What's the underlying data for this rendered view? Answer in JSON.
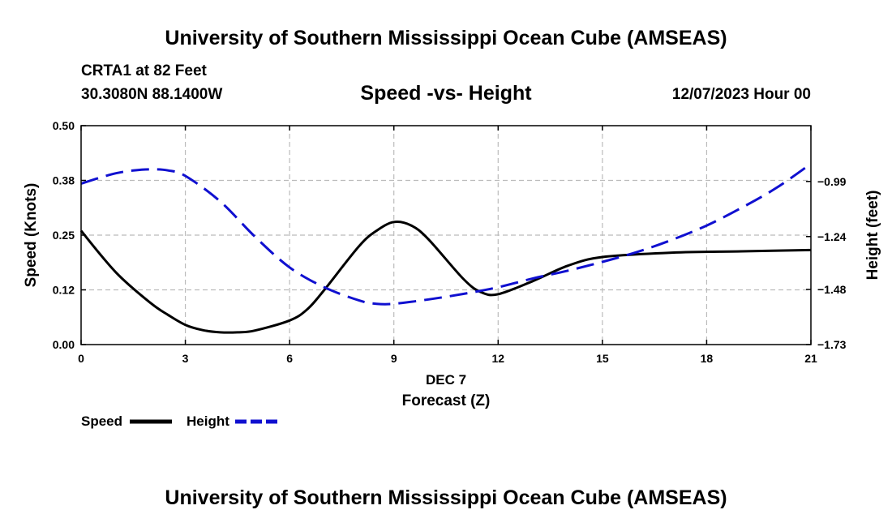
{
  "header": {
    "title": "University of Southern Mississippi Ocean Cube (AMSEAS)",
    "station": "CRTA1 at 82 Feet",
    "coords": "30.3080N  88.1400W",
    "date_label": "12/07/2023 Hour 00"
  },
  "footer": {
    "title": "University of Southern Mississippi Ocean Cube (AMSEAS)"
  },
  "colors": {
    "speed": "#000000",
    "height": "#1010d0",
    "grid": "#bbbbbb"
  },
  "chart_data": {
    "type": "line",
    "title": "Speed -vs- Height",
    "xlabel": "Forecast (Z)",
    "x_sublabel": "DEC 7",
    "ylabel": "Speed (Knots)",
    "y2label": "Height (feet)",
    "xlim": [
      0,
      21
    ],
    "ylim": [
      0,
      0.5
    ],
    "y2lim": [
      -1.73,
      -0.737
    ],
    "x_ticks": [
      0,
      3,
      6,
      9,
      12,
      15,
      18,
      21
    ],
    "y_ticks": [
      "0.00",
      "0.12",
      "0.25",
      "0.38",
      "0.50"
    ],
    "y2_ticks": [
      "-1.73",
      "-1.48",
      "-1.24",
      "-0.99"
    ],
    "grid": true,
    "series": [
      {
        "name": "Speed",
        "axis": "left",
        "style": "solid",
        "x": [
          0,
          1,
          2,
          2.5,
          3,
          3.5,
          4,
          4.5,
          5,
          6,
          6.5,
          7,
          8,
          8.5,
          9,
          9.5,
          10,
          11,
          11.5,
          12,
          13,
          14,
          15,
          17,
          19,
          21
        ],
        "values": [
          0.26,
          0.165,
          0.095,
          0.068,
          0.045,
          0.033,
          0.028,
          0.028,
          0.032,
          0.055,
          0.08,
          0.125,
          0.225,
          0.26,
          0.28,
          0.272,
          0.24,
          0.15,
          0.12,
          0.115,
          0.145,
          0.18,
          0.2,
          0.21,
          0.213,
          0.216
        ]
      },
      {
        "name": "Height",
        "axis": "right",
        "style": "dashed",
        "x": [
          0,
          0.5,
          1,
          1.5,
          2,
          2.5,
          3,
          4,
          5,
          6,
          7,
          8,
          8.5,
          9,
          10,
          11,
          12,
          13,
          14,
          15,
          16,
          17,
          18,
          19,
          20,
          21
        ],
        "values": [
          -1.0,
          -0.975,
          -0.953,
          -0.94,
          -0.935,
          -0.94,
          -0.965,
          -1.08,
          -1.24,
          -1.38,
          -1.47,
          -1.53,
          -1.545,
          -1.545,
          -1.525,
          -1.5,
          -1.47,
          -1.43,
          -1.395,
          -1.355,
          -1.31,
          -1.255,
          -1.19,
          -1.11,
          -1.02,
          -0.91
        ]
      }
    ],
    "legend": {
      "position": "bottom-left",
      "entries": [
        "Speed",
        "Height"
      ]
    }
  }
}
